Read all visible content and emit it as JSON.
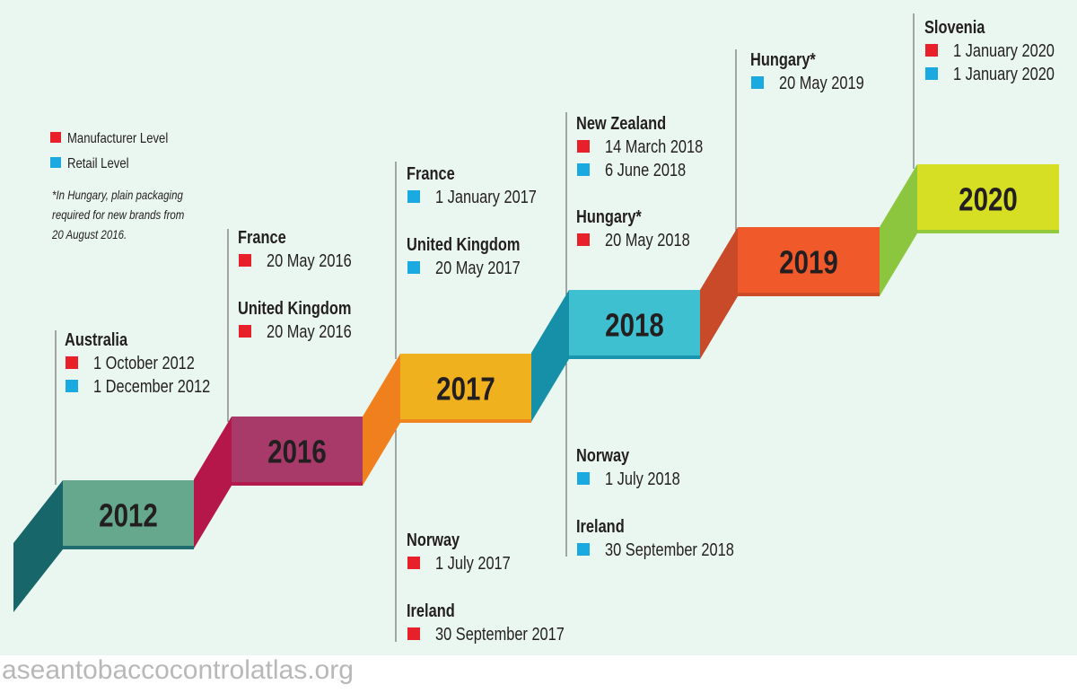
{
  "legend": {
    "items": [
      {
        "label": "Manufacturer Level",
        "color": "#e8202a"
      },
      {
        "label": "Retail Level",
        "color": "#1aa9e0"
      }
    ],
    "note": [
      "*In Hungary, plain packaging",
      "required for new brands from",
      "20 August 2016."
    ]
  },
  "steps": [
    {
      "year": "2012",
      "color": "#65a88e",
      "side_color": "#17666a"
    },
    {
      "year": "2016",
      "color": "#a83a6a",
      "side_color": "#b5174a"
    },
    {
      "year": "2017",
      "color": "#f0b11e",
      "side_color": "#f0801e"
    },
    {
      "year": "2018",
      "color": "#3fc0d0",
      "side_color": "#1590a8"
    },
    {
      "year": "2019",
      "color": "#f05a2a",
      "side_color": "#c84a28"
    },
    {
      "year": "2020",
      "color": "#d6df24",
      "side_color": "#8cc63f"
    }
  ],
  "entries": [
    {
      "country": "Australia",
      "dates": [
        {
          "text": "1 October 2012",
          "color": "#e8202a"
        },
        {
          "text": "1 December 2012",
          "color": "#1aa9e0"
        }
      ]
    },
    {
      "country": "France",
      "dates": [
        {
          "text": "20 May 2016",
          "color": "#e8202a"
        }
      ]
    },
    {
      "country": "United Kingdom",
      "dates": [
        {
          "text": "20 May 2016",
          "color": "#e8202a"
        }
      ]
    },
    {
      "country": "France",
      "dates": [
        {
          "text": "1 January 2017",
          "color": "#1aa9e0"
        }
      ]
    },
    {
      "country": "United Kingdom",
      "dates": [
        {
          "text": "20 May 2017",
          "color": "#1aa9e0"
        }
      ]
    },
    {
      "country": "Norway",
      "dates": [
        {
          "text": "1 July 2017",
          "color": "#e8202a"
        }
      ]
    },
    {
      "country": "Ireland",
      "dates": [
        {
          "text": "30 September 2017",
          "color": "#e8202a"
        }
      ]
    },
    {
      "country": "New Zealand",
      "dates": [
        {
          "text": "14 March 2018",
          "color": "#e8202a"
        },
        {
          "text": "6 June 2018",
          "color": "#1aa9e0"
        }
      ]
    },
    {
      "country": "Hungary*",
      "dates": [
        {
          "text": "20 May 2018",
          "color": "#e8202a"
        }
      ]
    },
    {
      "country": "Norway",
      "dates": [
        {
          "text": "1 July 2018",
          "color": "#1aa9e0"
        }
      ]
    },
    {
      "country": "Ireland",
      "dates": [
        {
          "text": "30 September 2018",
          "color": "#1aa9e0"
        }
      ]
    },
    {
      "country": "Hungary*",
      "dates": [
        {
          "text": "20 May 2019",
          "color": "#1aa9e0"
        }
      ]
    },
    {
      "country": "Slovenia",
      "dates": [
        {
          "text": "1 January 2020",
          "color": "#e8202a"
        },
        {
          "text": "1 January 2020",
          "color": "#1aa9e0"
        }
      ]
    }
  ],
  "footer": "aseantobaccocontrolatlas.org"
}
